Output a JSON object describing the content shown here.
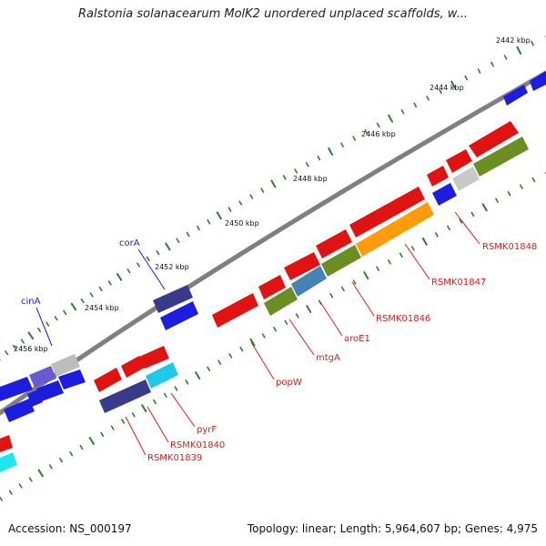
{
  "title": "Ralstonia solanacearum MolK2 unordered unplaced scaffolds, w...",
  "footer": {
    "accession": "Accession: NS_000197",
    "summary": "Topology: linear; Length: 5,964,607 bp; Genes: 4,975"
  },
  "colors": {
    "backbone": "#7f7f7f",
    "tick": "#2e7d32",
    "label_red": "#d21e1e",
    "label_blue": "#1a1adb"
  },
  "kbp_labels": [
    "2442 kbp",
    "2444 kbp",
    "2446 kbp",
    "2448 kbp",
    "2450 kbp",
    "2452 kbp",
    "2454 kbp",
    "2456 kbp"
  ],
  "gene_labels": [
    {
      "text": "RSMK01848",
      "color": "#d21e1e"
    },
    {
      "text": "RSMK01847",
      "color": "#d21e1e"
    },
    {
      "text": "RSMK01846",
      "color": "#d21e1e"
    },
    {
      "text": "aroE1",
      "color": "#d21e1e"
    },
    {
      "text": "mtgA",
      "color": "#d21e1e"
    },
    {
      "text": "popW",
      "color": "#d21e1e"
    },
    {
      "text": "pyrF",
      "color": "#d21e1e"
    },
    {
      "text": "RSMK01840",
      "color": "#d21e1e"
    },
    {
      "text": "RSMK01839",
      "color": "#d21e1e"
    },
    {
      "text": "corA",
      "color": "#1a1adb"
    },
    {
      "text": "cinA",
      "color": "#1a1adb"
    }
  ]
}
